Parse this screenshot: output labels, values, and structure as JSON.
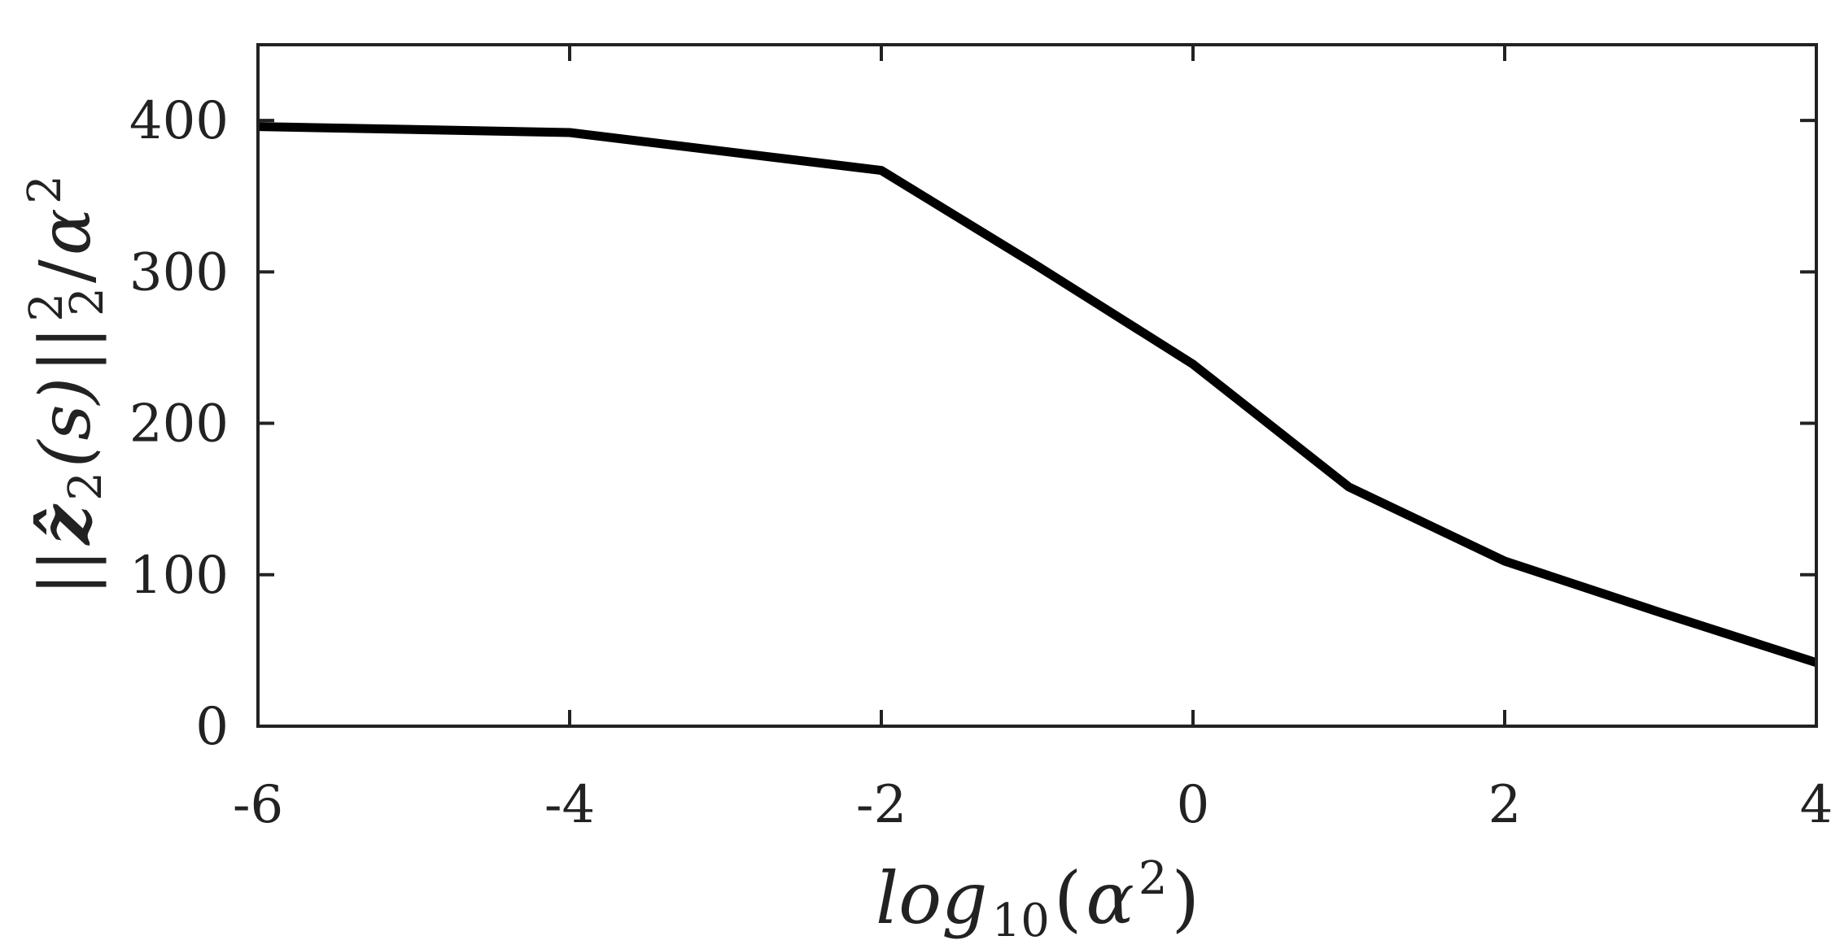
{
  "chart_data": {
    "type": "line",
    "xlabel": {
      "base": "log",
      "sub": "10",
      "open": "(",
      "sym": "α",
      "sup": "2",
      "close": ")"
    },
    "ylabel": {
      "norm_open": "||",
      "var": "ẑ",
      "var_sub": "2",
      "arg": "(s)",
      "norm_close": "||",
      "norm_sup": "2",
      "norm_sub": "2",
      "divide": "/",
      "sym": "α",
      "sym_sup": "2"
    },
    "xlim": [
      -6,
      4
    ],
    "ylim": [
      0,
      450
    ],
    "x_ticks": [
      {
        "value": -6,
        "label": "-6"
      },
      {
        "value": -4,
        "label": "-4"
      },
      {
        "value": -2,
        "label": "-2"
      },
      {
        "value": 0,
        "label": "0"
      },
      {
        "value": 2,
        "label": "2"
      },
      {
        "value": 4,
        "label": "4"
      }
    ],
    "y_ticks": [
      {
        "value": 0,
        "label": "0"
      },
      {
        "value": 100,
        "label": "100"
      },
      {
        "value": 200,
        "label": "200"
      },
      {
        "value": 300,
        "label": "300"
      },
      {
        "value": 400,
        "label": "400"
      }
    ],
    "grid": false,
    "series": [
      {
        "color": "#000000",
        "x": [
          -6,
          -4,
          -2,
          -1,
          0,
          1,
          2,
          3,
          4
        ],
        "y": [
          396,
          392,
          367,
          304,
          239,
          158,
          109,
          75,
          42
        ]
      }
    ]
  }
}
